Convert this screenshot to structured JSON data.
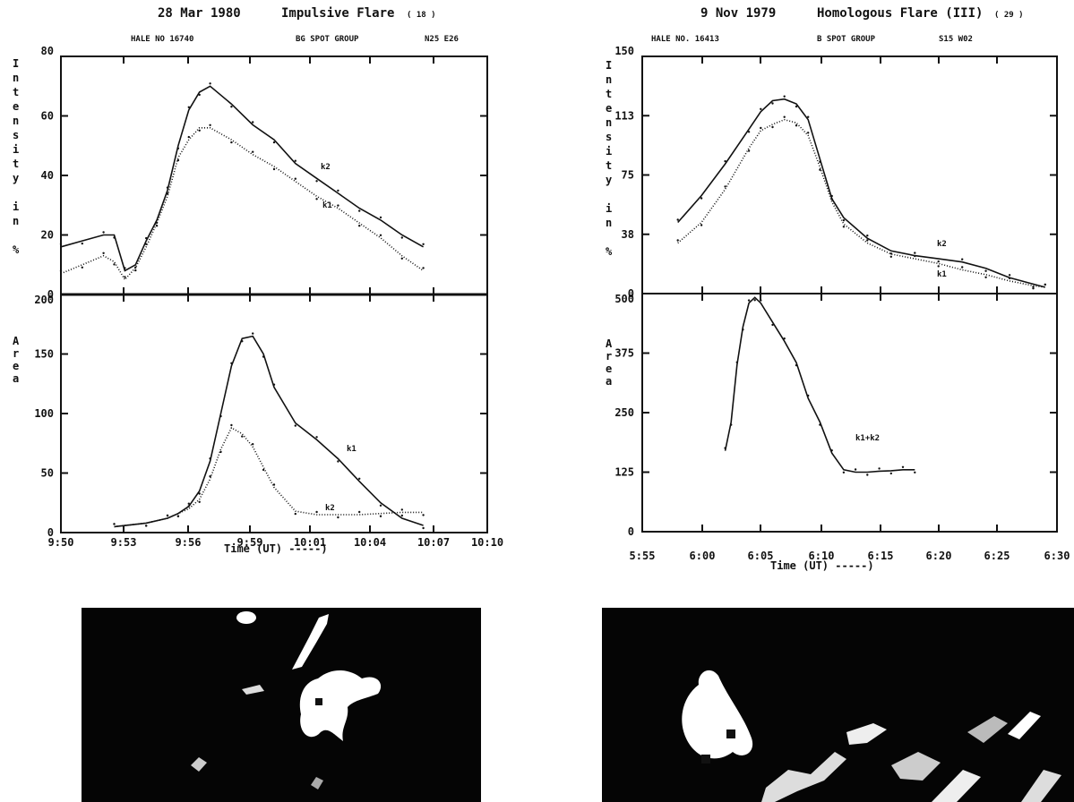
{
  "charts": [
    {
      "title": "28 Mar 1980",
      "flare_type": "Impulsive Flare",
      "flare_number": "( 18 )",
      "hale_no": "HALE NO  16740",
      "spot_group": "BG SPOT GROUP",
      "location": "N25 E26",
      "ylabel_top": [
        "I",
        "n",
        "t",
        "e",
        "n",
        "s",
        "i",
        "t",
        "y",
        "",
        "i",
        "n",
        "",
        "%"
      ],
      "ylabel_bottom": [
        "A",
        "r",
        "e",
        "a"
      ],
      "xlabel": "Time (UT) -----)",
      "x_ticks": [
        "9:50",
        "9:53",
        "9:56",
        "9:59",
        "10:01",
        "10:04",
        "10:07",
        "10:10"
      ],
      "top_y_ticks": [
        "0",
        "20",
        "40",
        "60",
        "80"
      ],
      "bottom_y_ticks": [
        "0",
        "50",
        "100",
        "150",
        "200"
      ]
    },
    {
      "title": "9 Nov 1979",
      "flare_type": "Homologous Flare (III)",
      "flare_number": "( 29 )",
      "hale_no": "HALE NO. 16413",
      "spot_group": "B SPOT GROUP",
      "location": "S15 W02",
      "ylabel_top": [
        "I",
        "n",
        "t",
        "e",
        "n",
        "s",
        "i",
        "t",
        "y",
        "",
        "i",
        "n",
        "",
        "%"
      ],
      "ylabel_bottom": [
        "A",
        "r",
        "e",
        "a"
      ],
      "xlabel": "Time (UT) -----)",
      "x_ticks": [
        "5:55",
        "6:00",
        "6:05",
        "6:10",
        "6:15",
        "6:20",
        "6:25",
        "6:30"
      ],
      "top_y_ticks": [
        "0",
        "38",
        "75",
        "113",
        "150"
      ],
      "bottom_y_ticks": [
        "0",
        "125",
        "250",
        "375",
        "500"
      ]
    }
  ],
  "chart_data": [
    {
      "type": "line",
      "panel": "28 Mar 1980 – intensity",
      "x_unit": "minutes after 9:50 UT",
      "ylim": [
        0,
        80
      ],
      "series": [
        {
          "name": "k2",
          "x": [
            0,
            1,
            2,
            2.5,
            3,
            3.5,
            4,
            4.5,
            5,
            5.5,
            6,
            6.5,
            7,
            8,
            9,
            10,
            11,
            12,
            13,
            14,
            15,
            16,
            17
          ],
          "y": [
            16,
            18,
            20,
            20,
            8,
            10,
            18,
            25,
            35,
            50,
            62,
            68,
            70,
            64,
            57,
            52,
            44,
            39,
            34,
            29,
            25,
            20,
            16
          ]
        },
        {
          "name": "k1",
          "x": [
            0,
            1,
            2,
            2.5,
            3,
            3.5,
            4,
            4.5,
            5,
            5.5,
            6,
            6.5,
            7,
            8,
            9,
            10,
            11,
            12,
            13,
            14,
            15,
            16,
            17
          ],
          "y": [
            7,
            10,
            13,
            11,
            5,
            9,
            16,
            24,
            33,
            46,
            52,
            56,
            56,
            52,
            47,
            43,
            38,
            33,
            29,
            24,
            19,
            13,
            8
          ]
        }
      ],
      "labels": [
        "k2",
        "k1"
      ]
    },
    {
      "type": "line",
      "panel": "28 Mar 1980 – area",
      "x_unit": "minutes after 9:50 UT",
      "ylim": [
        0,
        200
      ],
      "series": [
        {
          "name": "k1",
          "x": [
            2.5,
            4,
            5,
            5.5,
            6,
            6.5,
            7,
            7.5,
            8,
            8.5,
            9,
            9.5,
            10,
            11,
            12,
            13,
            14,
            15,
            16,
            17
          ],
          "y": [
            5,
            8,
            12,
            16,
            22,
            35,
            60,
            100,
            140,
            163,
            165,
            150,
            122,
            92,
            78,
            62,
            43,
            25,
            12,
            6
          ]
        },
        {
          "name": "k2",
          "x": [
            2.5,
            4,
            5,
            5.5,
            6,
            6.5,
            7,
            7.5,
            8,
            8.5,
            9,
            9.5,
            10,
            11,
            12,
            13,
            14,
            15,
            16,
            17
          ],
          "y": [
            5,
            8,
            12,
            16,
            20,
            28,
            45,
            70,
            88,
            83,
            72,
            55,
            38,
            18,
            15,
            15,
            15,
            16,
            17,
            17
          ]
        }
      ],
      "labels": [
        "k1",
        "k2"
      ]
    },
    {
      "type": "line",
      "panel": "9 Nov 1979 – intensity",
      "x_unit": "minutes after 5:55 UT",
      "ylim": [
        0,
        150
      ],
      "series": [
        {
          "name": "k2",
          "x": [
            3,
            5,
            7,
            9,
            10,
            11,
            12,
            13,
            14,
            15,
            16,
            17,
            19,
            21,
            23,
            25,
            27,
            29,
            31,
            33,
            34
          ],
          "y": [
            45,
            62,
            82,
            104,
            115,
            122,
            123,
            120,
            110,
            85,
            60,
            48,
            35,
            27,
            24,
            22,
            20,
            16,
            10,
            6,
            4
          ]
        },
        {
          "name": "k1",
          "x": [
            3,
            5,
            7,
            9,
            10,
            11,
            12,
            13,
            14,
            15,
            16,
            17,
            19,
            21,
            23,
            25,
            27,
            29,
            31,
            33,
            34
          ],
          "y": [
            32,
            45,
            66,
            92,
            103,
            107,
            110,
            108,
            100,
            80,
            58,
            44,
            32,
            25,
            22,
            19,
            15,
            12,
            8,
            5,
            4
          ]
        }
      ],
      "labels": [
        "k2",
        "k1"
      ]
    },
    {
      "type": "line",
      "panel": "9 Nov 1979 – area",
      "x_unit": "minutes after 5:55 UT",
      "ylim": [
        0,
        500
      ],
      "series": [
        {
          "name": "k1+k2",
          "x": [
            7,
            7.5,
            8,
            8.5,
            9,
            9.5,
            10,
            11,
            12,
            13,
            14,
            15,
            16,
            17,
            18,
            19,
            20,
            21,
            22,
            23
          ],
          "y": [
            170,
            230,
            350,
            430,
            480,
            492,
            480,
            440,
            400,
            355,
            280,
            230,
            165,
            130,
            125,
            125,
            127,
            128,
            130,
            130
          ]
        }
      ],
      "labels": [
        "k1+k2"
      ]
    }
  ],
  "images": [
    {
      "description": "flare image 28 Mar 1980"
    },
    {
      "description": "flare image 9 Nov 1979"
    }
  ]
}
